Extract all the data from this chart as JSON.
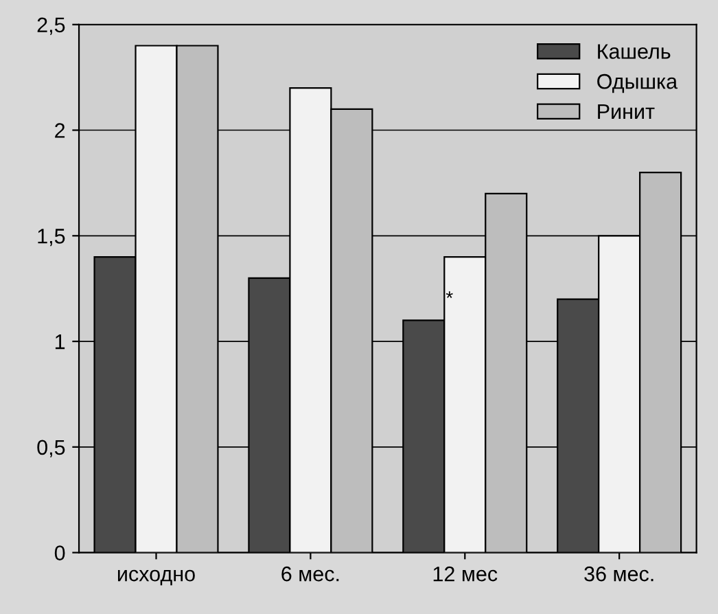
{
  "chart_data": {
    "type": "bar",
    "categories": [
      "исходно",
      "6 мес.",
      "12 мес",
      "36 мес."
    ],
    "series": [
      {
        "name": "Кашель",
        "color": "#4a4a4a",
        "values": [
          1.4,
          1.3,
          1.1,
          1.2
        ]
      },
      {
        "name": "Одышка",
        "color": "#f2f2f2",
        "values": [
          2.4,
          2.2,
          1.4,
          1.5
        ]
      },
      {
        "name": "Ринит",
        "color": "#bdbdbd",
        "values": [
          2.4,
          2.1,
          1.7,
          1.8
        ]
      }
    ],
    "ylim": [
      0,
      2.5
    ],
    "yticks": [
      0,
      {
        "value": 0.5,
        "label": "0,5"
      },
      1,
      {
        "value": 1.5,
        "label": "1,5"
      },
      2,
      {
        "value": 2.5,
        "label": "2,5"
      }
    ],
    "grid": "y",
    "legend": "top right",
    "annotations": [
      "*"
    ]
  }
}
